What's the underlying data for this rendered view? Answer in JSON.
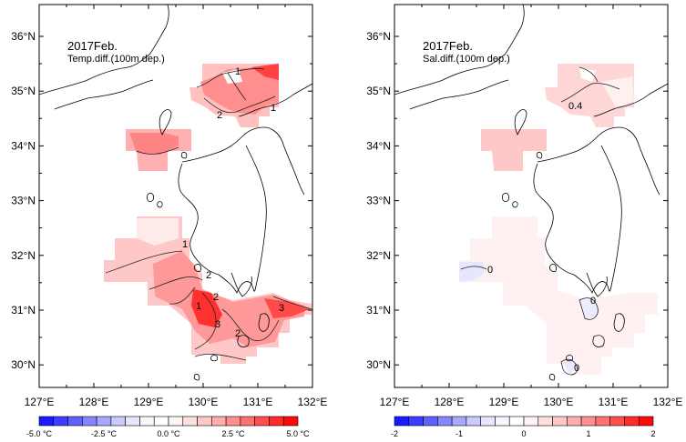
{
  "maps": [
    {
      "title": "2017Feb.",
      "subtitle": "Temp.diff.(100m dep.)",
      "lon_labels": [
        "127°E",
        "128°E",
        "129°E",
        "130°E",
        "131°E",
        "132°E"
      ],
      "lat_labels": [
        "30°N",
        "31°N",
        "32°N",
        "33°N",
        "34°N",
        "35°N",
        "36°N"
      ],
      "contour_labels": [
        "1",
        "2",
        "1",
        "1",
        "2",
        "2",
        "1",
        "3",
        "2",
        "3"
      ],
      "colorbar": {
        "labels": [
          "-5.0 °C",
          "-2.5 °C",
          "0.0 °C",
          "2.5 °C",
          "5.0 °C"
        ],
        "range": [
          -5,
          5
        ],
        "colors": [
          "#1a1aff",
          "#3d3dff",
          "#6060ff",
          "#8585ff",
          "#a8a8ff",
          "#cacaff",
          "#e6e6ff",
          "#f6f6ff",
          "#ffffff",
          "#fff4f4",
          "#ffe0e0",
          "#ffc8c8",
          "#ffadad",
          "#ff9090",
          "#ff7070",
          "#ff5050",
          "#ff2c2c",
          "#ff0a0a"
        ]
      }
    },
    {
      "title": "2017Feb.",
      "subtitle": "Sal.diff.(100m dep.)",
      "lon_labels": [
        "127°E",
        "128°E",
        "129°E",
        "130°E",
        "131°E",
        "132°E"
      ],
      "lat_labels": [
        "30°N",
        "31°N",
        "32°N",
        "33°N",
        "34°N",
        "35°N",
        "36°N"
      ],
      "contour_labels": [
        "0.4",
        "0",
        "0",
        "0"
      ],
      "colorbar": {
        "labels": [
          "-2",
          "-1",
          "0",
          "1",
          "2"
        ],
        "range": [
          -2,
          2
        ],
        "colors": [
          "#1a1aff",
          "#3d3dff",
          "#6060ff",
          "#8585ff",
          "#a8a8ff",
          "#cacaff",
          "#e6e6ff",
          "#f6f6ff",
          "#ffffff",
          "#fff4f4",
          "#ffe0e0",
          "#ffc8c8",
          "#ffadad",
          "#ff9090",
          "#ff7070",
          "#ff5050",
          "#ff2c2c",
          "#ff0a0a"
        ]
      }
    }
  ]
}
